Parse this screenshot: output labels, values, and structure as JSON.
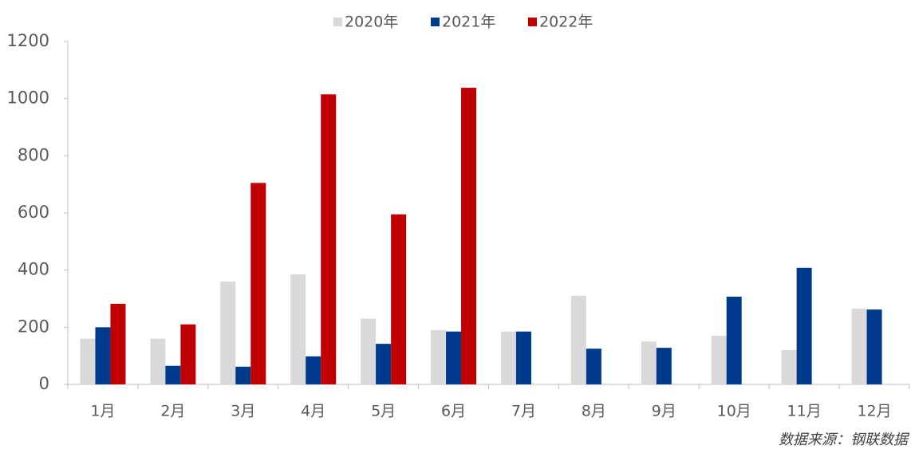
{
  "chart_data": {
    "type": "bar",
    "categories": [
      "1月",
      "2月",
      "3月",
      "4月",
      "5月",
      "6月",
      "7月",
      "8月",
      "9月",
      "10月",
      "11月",
      "12月"
    ],
    "series": [
      {
        "name": "2020年",
        "color": "#d9d9d9",
        "values": [
          160,
          160,
          360,
          385,
          230,
          190,
          185,
          310,
          150,
          170,
          120,
          265
        ]
      },
      {
        "name": "2021年",
        "color": "#003a8c",
        "values": [
          200,
          65,
          62,
          98,
          142,
          185,
          185,
          125,
          128,
          307,
          408,
          262
        ]
      },
      {
        "name": "2022年",
        "color": "#c00000",
        "values": [
          282,
          210,
          705,
          1015,
          595,
          1038,
          null,
          null,
          null,
          null,
          null,
          null
        ]
      }
    ],
    "ylim": [
      0,
      1200
    ],
    "yticks": [
      0,
      200,
      400,
      600,
      800,
      1000,
      1200
    ],
    "legend": "top",
    "source": "数据来源：钢联数据"
  }
}
